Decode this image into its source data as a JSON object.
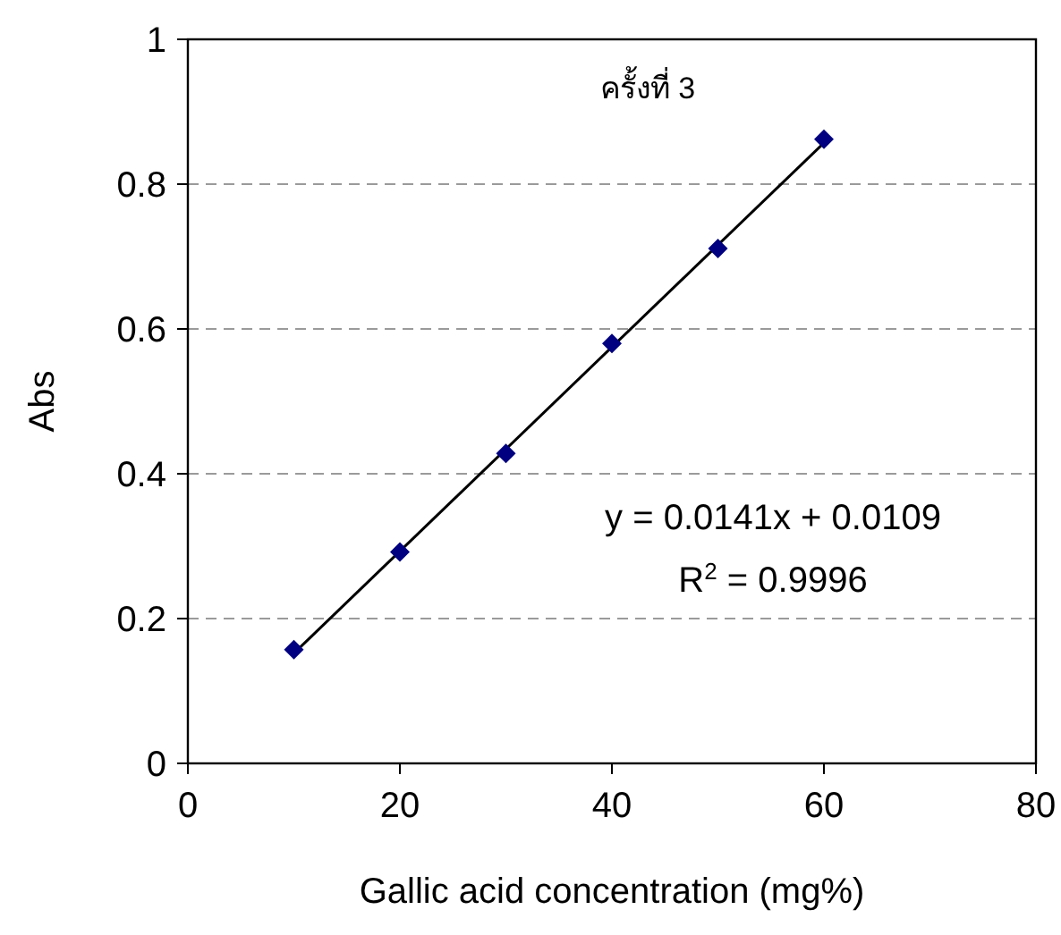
{
  "chart_data": {
    "type": "scatter",
    "title": "ครั้งที่ 3",
    "xlabel": "Gallic acid concentration (mg%)",
    "ylabel": "Abs",
    "xlim": [
      0,
      80
    ],
    "xticks": [
      0,
      20,
      40,
      60,
      80
    ],
    "ylim": [
      0,
      1
    ],
    "yticks": [
      0,
      0.2,
      0.4,
      0.6,
      0.8,
      1
    ],
    "grid": "y",
    "series": [
      {
        "color": "#000080",
        "marker": "diamond",
        "x": [
          10,
          20,
          30,
          40,
          50,
          60
        ],
        "values": [
          0.157,
          0.292,
          0.428,
          0.58,
          0.711,
          0.862
        ]
      },
      {
        "type": "line",
        "color": "#000000",
        "marker": "none",
        "line_style": "solid",
        "x": [
          10,
          60
        ],
        "values": [
          0.152,
          0.857
        ]
      }
    ],
    "annotations": [
      "y = 0.0141x + 0.0109",
      "R$^{2}$ = 0.9996"
    ]
  }
}
